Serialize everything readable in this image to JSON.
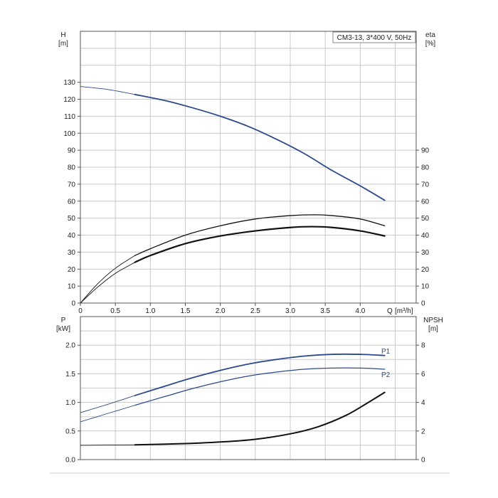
{
  "chart_data": [
    {
      "type": "line",
      "legend_box": "CM3-13, 3*400 V, 50Hz",
      "ylabel": "H",
      "ylabel_unit": "[m]",
      "y2label": "eta",
      "y2label_unit": "[%]",
      "xlabel": "Q",
      "xlabel_unit": "[m³/h]",
      "xlim": [
        0,
        4.8
      ],
      "ylim": [
        0,
        160
      ],
      "y2lim": [
        0,
        160
      ],
      "x_ticks": [
        "0",
        "0.5",
        "1.0",
        "1.5",
        "2.0",
        "2.5",
        "3.0",
        "3.5",
        "4.0"
      ],
      "y_ticks": [
        "0",
        "10",
        "20",
        "30",
        "40",
        "50",
        "60",
        "70",
        "80",
        "90",
        "100",
        "110",
        "120",
        "130"
      ],
      "y2_ticks": [
        "0",
        "10",
        "20",
        "30",
        "40",
        "50",
        "60",
        "70",
        "80",
        "90"
      ],
      "grid": true,
      "series": [
        {
          "id": "head",
          "color": "#2b4a8b",
          "x": [
            0,
            0.4,
            0.78,
            1.2,
            1.6,
            2.0,
            2.4,
            2.8,
            3.2,
            3.6,
            4.0,
            4.35
          ],
          "values": [
            127.5,
            125.7,
            122.8,
            119.3,
            115.0,
            110.0,
            104.0,
            96.5,
            88.0,
            78.0,
            69.0,
            60.5
          ],
          "y_axis": "left"
        },
        {
          "id": "eta-pump",
          "color": "#111111",
          "x": [
            0,
            0.25,
            0.5,
            0.78,
            1.0,
            1.5,
            2.0,
            2.5,
            3.0,
            3.3,
            3.6,
            4.0,
            4.35
          ],
          "values": [
            0,
            9.5,
            17.5,
            24.0,
            28.0,
            35.0,
            39.5,
            42.5,
            44.5,
            45.0,
            44.5,
            42.5,
            39.5
          ],
          "y_axis": "right"
        },
        {
          "id": "eta-motor-pump",
          "color": "#111111",
          "x": [
            0,
            0.25,
            0.5,
            0.78,
            1.0,
            1.5,
            2.0,
            2.5,
            3.0,
            3.35,
            3.6,
            4.0,
            4.35
          ],
          "values": [
            0,
            11.5,
            20.5,
            28.0,
            32.0,
            40.0,
            45.5,
            49.5,
            51.5,
            52.0,
            51.5,
            49.5,
            45.5
          ],
          "y_axis": "right"
        }
      ]
    },
    {
      "type": "line",
      "ylabel": "P",
      "ylabel_unit": "[kW]",
      "y2label": "NPSH",
      "y2label_unit": "[m]",
      "xlim": [
        0,
        4.8
      ],
      "ylim": [
        0,
        2.5
      ],
      "y2lim": [
        0,
        10
      ],
      "x_ticks": [],
      "y_ticks": [
        "0.0",
        "0.5",
        "1.0",
        "1.5",
        "2.0"
      ],
      "y2_ticks": [
        "0",
        "2",
        "4",
        "6",
        "8"
      ],
      "grid": true,
      "series": [
        {
          "id": "p1",
          "name": "P1",
          "color": "#2b4a8b",
          "x": [
            0,
            0.4,
            0.78,
            1.2,
            1.6,
            2.0,
            2.4,
            2.8,
            3.2,
            3.6,
            4.0,
            4.35
          ],
          "values": [
            0.82,
            0.97,
            1.12,
            1.28,
            1.43,
            1.56,
            1.67,
            1.75,
            1.81,
            1.84,
            1.84,
            1.82
          ],
          "y_axis": "left"
        },
        {
          "id": "p2",
          "name": "P2",
          "color": "#2b4a8b",
          "x": [
            0,
            0.4,
            0.78,
            1.2,
            1.6,
            2.0,
            2.4,
            2.8,
            3.2,
            3.6,
            4.0,
            4.35
          ],
          "values": [
            0.66,
            0.81,
            0.95,
            1.1,
            1.24,
            1.36,
            1.46,
            1.53,
            1.58,
            1.6,
            1.6,
            1.58
          ],
          "y_axis": "left"
        },
        {
          "id": "npsh",
          "color": "#111111",
          "x": [
            0,
            0.78,
            1.5,
            2.0,
            2.5,
            3.0,
            3.4,
            3.8,
            4.1,
            4.35
          ],
          "values": [
            1.0,
            1.03,
            1.12,
            1.23,
            1.42,
            1.8,
            2.3,
            3.1,
            3.95,
            4.7
          ],
          "y_axis": "right"
        }
      ]
    }
  ]
}
